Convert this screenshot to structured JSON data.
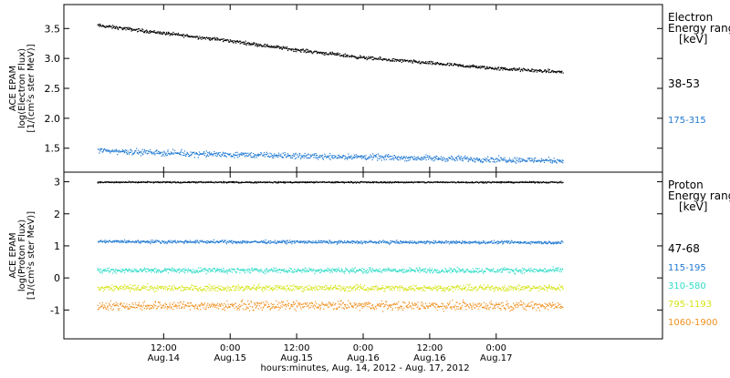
{
  "chart_data": [
    {
      "type": "scatter",
      "panel": "electron",
      "ylabel_lines": [
        "ACE EPAM",
        "log(Electron Flux)",
        "[1/(cm²s ster MeV)]"
      ],
      "ylim": [
        1.1,
        3.9
      ],
      "yticks": [
        1.5,
        2.0,
        2.5,
        3.0,
        3.5
      ],
      "ytick_labels": [
        "1.5",
        "2.0",
        "2.5",
        "3.0",
        "3.5"
      ],
      "legend_title": [
        "Electron",
        "Energy ranges",
        "[keV]"
      ],
      "series": [
        {
          "name": "38-53",
          "color": "#000000",
          "x": [
            0,
            12,
            24,
            36,
            48,
            60,
            72,
            84
          ],
          "y": [
            3.56,
            3.43,
            3.3,
            3.15,
            3.02,
            2.93,
            2.84,
            2.78
          ],
          "spread": 0.04
        },
        {
          "name": "175-315",
          "color": "#1e78d2",
          "x": [
            0,
            12,
            24,
            36,
            48,
            60,
            72,
            84
          ],
          "y": [
            1.47,
            1.43,
            1.4,
            1.38,
            1.36,
            1.34,
            1.32,
            1.3
          ],
          "spread": 0.07
        }
      ]
    },
    {
      "type": "scatter",
      "panel": "proton",
      "ylabel_lines": [
        "ACE EPAM",
        "log(Proton Flux)",
        "[1/(cm²s ster MeV)]"
      ],
      "ylim": [
        -1.9,
        3.3
      ],
      "yticks": [
        -1,
        0,
        1,
        2,
        3
      ],
      "ytick_labels": [
        "-1",
        "0",
        "1",
        "2",
        "3"
      ],
      "legend_title": [
        "Proton",
        "Energy ranges",
        "[keV]"
      ],
      "series": [
        {
          "name": "47-68",
          "color": "#000000",
          "x": [
            0,
            84
          ],
          "y": [
            3.0,
            3.0
          ],
          "spread": 0.03
        },
        {
          "name": "115-195",
          "color": "#1e78d2",
          "x": [
            0,
            84
          ],
          "y": [
            1.15,
            1.12
          ],
          "spread": 0.07
        },
        {
          "name": "310-580",
          "color": "#30dcc8",
          "x": [
            0,
            84
          ],
          "y": [
            0.25,
            0.25
          ],
          "spread": 0.12
        },
        {
          "name": "795-1193",
          "color": "#d4e414",
          "x": [
            0,
            84
          ],
          "y": [
            -0.3,
            -0.3
          ],
          "spread": 0.14
        },
        {
          "name": "1060-1900",
          "color": "#f09020",
          "x": [
            0,
            84
          ],
          "y": [
            -0.85,
            -0.85
          ],
          "spread": 0.2
        }
      ]
    }
  ],
  "x_axis": {
    "range_hours": [
      -6,
      102
    ],
    "data_end_hour": 84,
    "ticks": [
      {
        "hour": 12,
        "time": "12:00",
        "date": "Aug.14"
      },
      {
        "hour": 24,
        "time": "0:00",
        "date": "Aug.15"
      },
      {
        "hour": 36,
        "time": "12:00",
        "date": "Aug.15"
      },
      {
        "hour": 48,
        "time": "0:00",
        "date": "Aug.16"
      },
      {
        "hour": 60,
        "time": "12:00",
        "date": "Aug.16"
      },
      {
        "hour": 72,
        "time": "0:00",
        "date": "Aug.17"
      }
    ],
    "xlabel": "hours:minutes, Aug. 14, 2012 - Aug. 17, 2012"
  }
}
